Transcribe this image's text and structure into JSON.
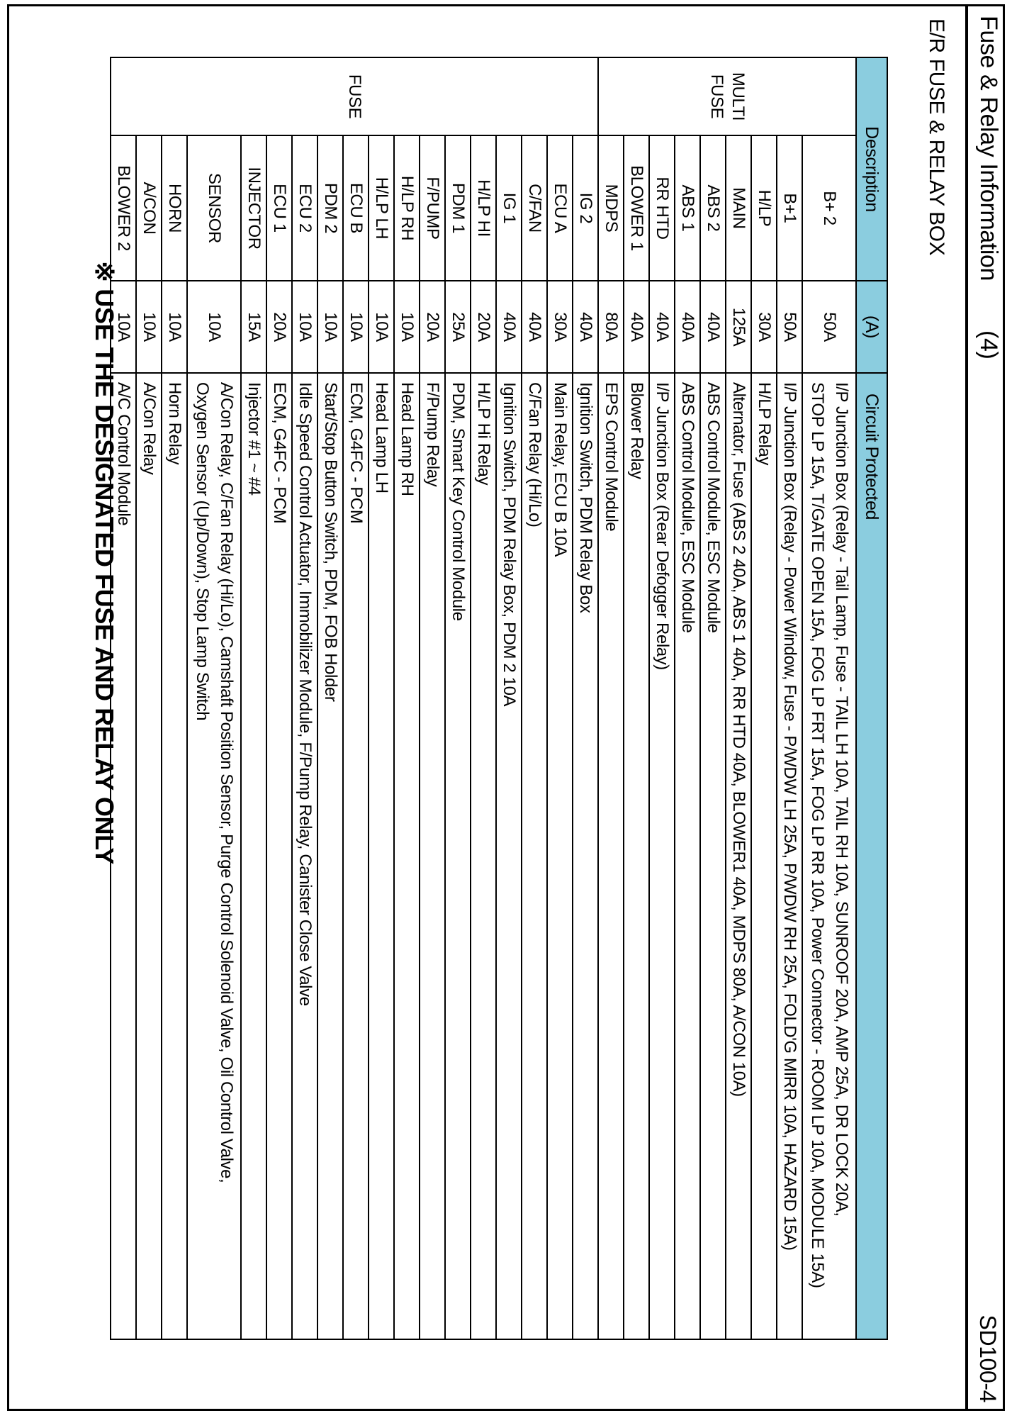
{
  "page": {
    "title": "Fuse & Relay Information",
    "title_number": "(4)",
    "doc_code": "SD100-4",
    "section_heading": "E/R FUSE & RELAY BOX",
    "footer_note": "※ USE THE DESIGNATED FUSE AND RELAY ONLY",
    "rotation": "content rotated 90deg clockwise in portrait scan"
  },
  "colors": {
    "header_bg": "#8BCDDF",
    "border": "#000000",
    "page_bg": "#ffffff"
  },
  "table": {
    "headers": {
      "description": "Description",
      "amp": "(A)",
      "circuit": "Circuit Protected"
    },
    "groups": [
      {
        "label_lines": [
          "MULTI",
          "FUSE"
        ],
        "rows": [
          {
            "description": "B+ 2",
            "amp": "50A",
            "circuit": [
              "I/P Junction Box (Relay - Tail Lamp, Fuse - TAIL LH 10A, TAIL RH 10A, SUNROOF 20A, AMP 25A, DR LOCK 20A,",
              "STOP LP 15A, T/GATE OPEN 15A, FOG LP FRT 15A, FOG LP RR 10A, Power Connector - ROOM LP 10A, MODULE 15A)"
            ]
          },
          {
            "description": "B+1",
            "amp": "50A",
            "circuit": [
              "I/P Junction Box (Relay - Power Window, Fuse - P/WDW LH 25A, P/WDW RH 25A, FOLD'G MIRR 10A, HAZARD 15A)"
            ]
          },
          {
            "description": "H/LP",
            "amp": "30A",
            "circuit": [
              "H/LP Relay"
            ]
          },
          {
            "description": "MAIN",
            "amp": "125A",
            "circuit": [
              "Alternator, Fuse (ABS 2 40A, ABS 1 40A, RR HTD 40A, BLOWER1 40A, MDPS 80A, A/CON 10A)"
            ]
          },
          {
            "description": "ABS 2",
            "amp": "40A",
            "circuit": [
              "ABS Control Module, ESC Module"
            ]
          },
          {
            "description": "ABS 1",
            "amp": "40A",
            "circuit": [
              "ABS Control Module, ESC Module"
            ]
          },
          {
            "description": "RR HTD",
            "amp": "40A",
            "circuit": [
              "I/P Junction Box (Rear Defogger Relay)"
            ]
          },
          {
            "description": "BLOWER 1",
            "amp": "40A",
            "circuit": [
              "Blower Relay"
            ]
          },
          {
            "description": "MDPS",
            "amp": "80A",
            "circuit": [
              "EPS Control Module"
            ]
          }
        ]
      },
      {
        "label_lines": [
          "FUSE"
        ],
        "rows": [
          {
            "description": "IG 2",
            "amp": "40A",
            "circuit": [
              "Ignition Switch, PDM Relay Box"
            ]
          },
          {
            "description": "ECU A",
            "amp": "30A",
            "circuit": [
              "Main Relay, ECU B 10A"
            ]
          },
          {
            "description": "C/FAN",
            "amp": "40A",
            "circuit": [
              "C/Fan Relay (Hi/Lo)"
            ]
          },
          {
            "description": "IG 1",
            "amp": "40A",
            "circuit": [
              "Ignition Switch, PDM Relay Box, PDM 2 10A"
            ]
          },
          {
            "description": "H/LP HI",
            "amp": "20A",
            "circuit": [
              "H/LP Hi Relay"
            ]
          },
          {
            "description": "PDM 1",
            "amp": "25A",
            "circuit": [
              "PDM, Smart Key Control Module"
            ]
          },
          {
            "description": "F/PUMP",
            "amp": "20A",
            "circuit": [
              "F/Pump Relay"
            ]
          },
          {
            "description": "H/LP RH",
            "amp": "10A",
            "circuit": [
              "Head Lamp RH"
            ]
          },
          {
            "description": "H/LP LH",
            "amp": "10A",
            "circuit": [
              "Head Lamp LH"
            ]
          },
          {
            "description": "ECU B",
            "amp": "10A",
            "circuit": [
              "ECM, G4FC - PCM"
            ]
          },
          {
            "description": "PDM 2",
            "amp": "10A",
            "circuit": [
              "Start/Stop Button Switch, PDM, FOB Holder"
            ]
          },
          {
            "description": "ECU 2",
            "amp": "10A",
            "circuit": [
              "Idle Speed Control Actuator, Immobilizer Module, F/Pump Relay, Canister Close Valve"
            ]
          },
          {
            "description": "ECU 1",
            "amp": "20A",
            "circuit": [
              "ECM, G4FC - PCM"
            ]
          },
          {
            "description": "INJECTOR",
            "amp": "15A",
            "circuit": [
              "Injector #1 ~ #4"
            ]
          },
          {
            "description": "SENSOR",
            "amp": "10A",
            "circuit": [
              "A/Con Relay, C/Fan Relay (Hi/Lo), Camshaft Position Sensor, Purge Control Solenoid Valve, Oil Control Valve,",
              "Oxygen Sensor (Up/Down), Stop Lamp Switch"
            ]
          },
          {
            "description": "HORN",
            "amp": "10A",
            "circuit": [
              "Horn Relay"
            ]
          },
          {
            "description": "A/CON",
            "amp": "10A",
            "circuit": [
              "A/Con Relay"
            ]
          },
          {
            "description": "BLOWER 2",
            "amp": "10A",
            "circuit": [
              "A/C Control Module"
            ]
          }
        ]
      }
    ]
  }
}
